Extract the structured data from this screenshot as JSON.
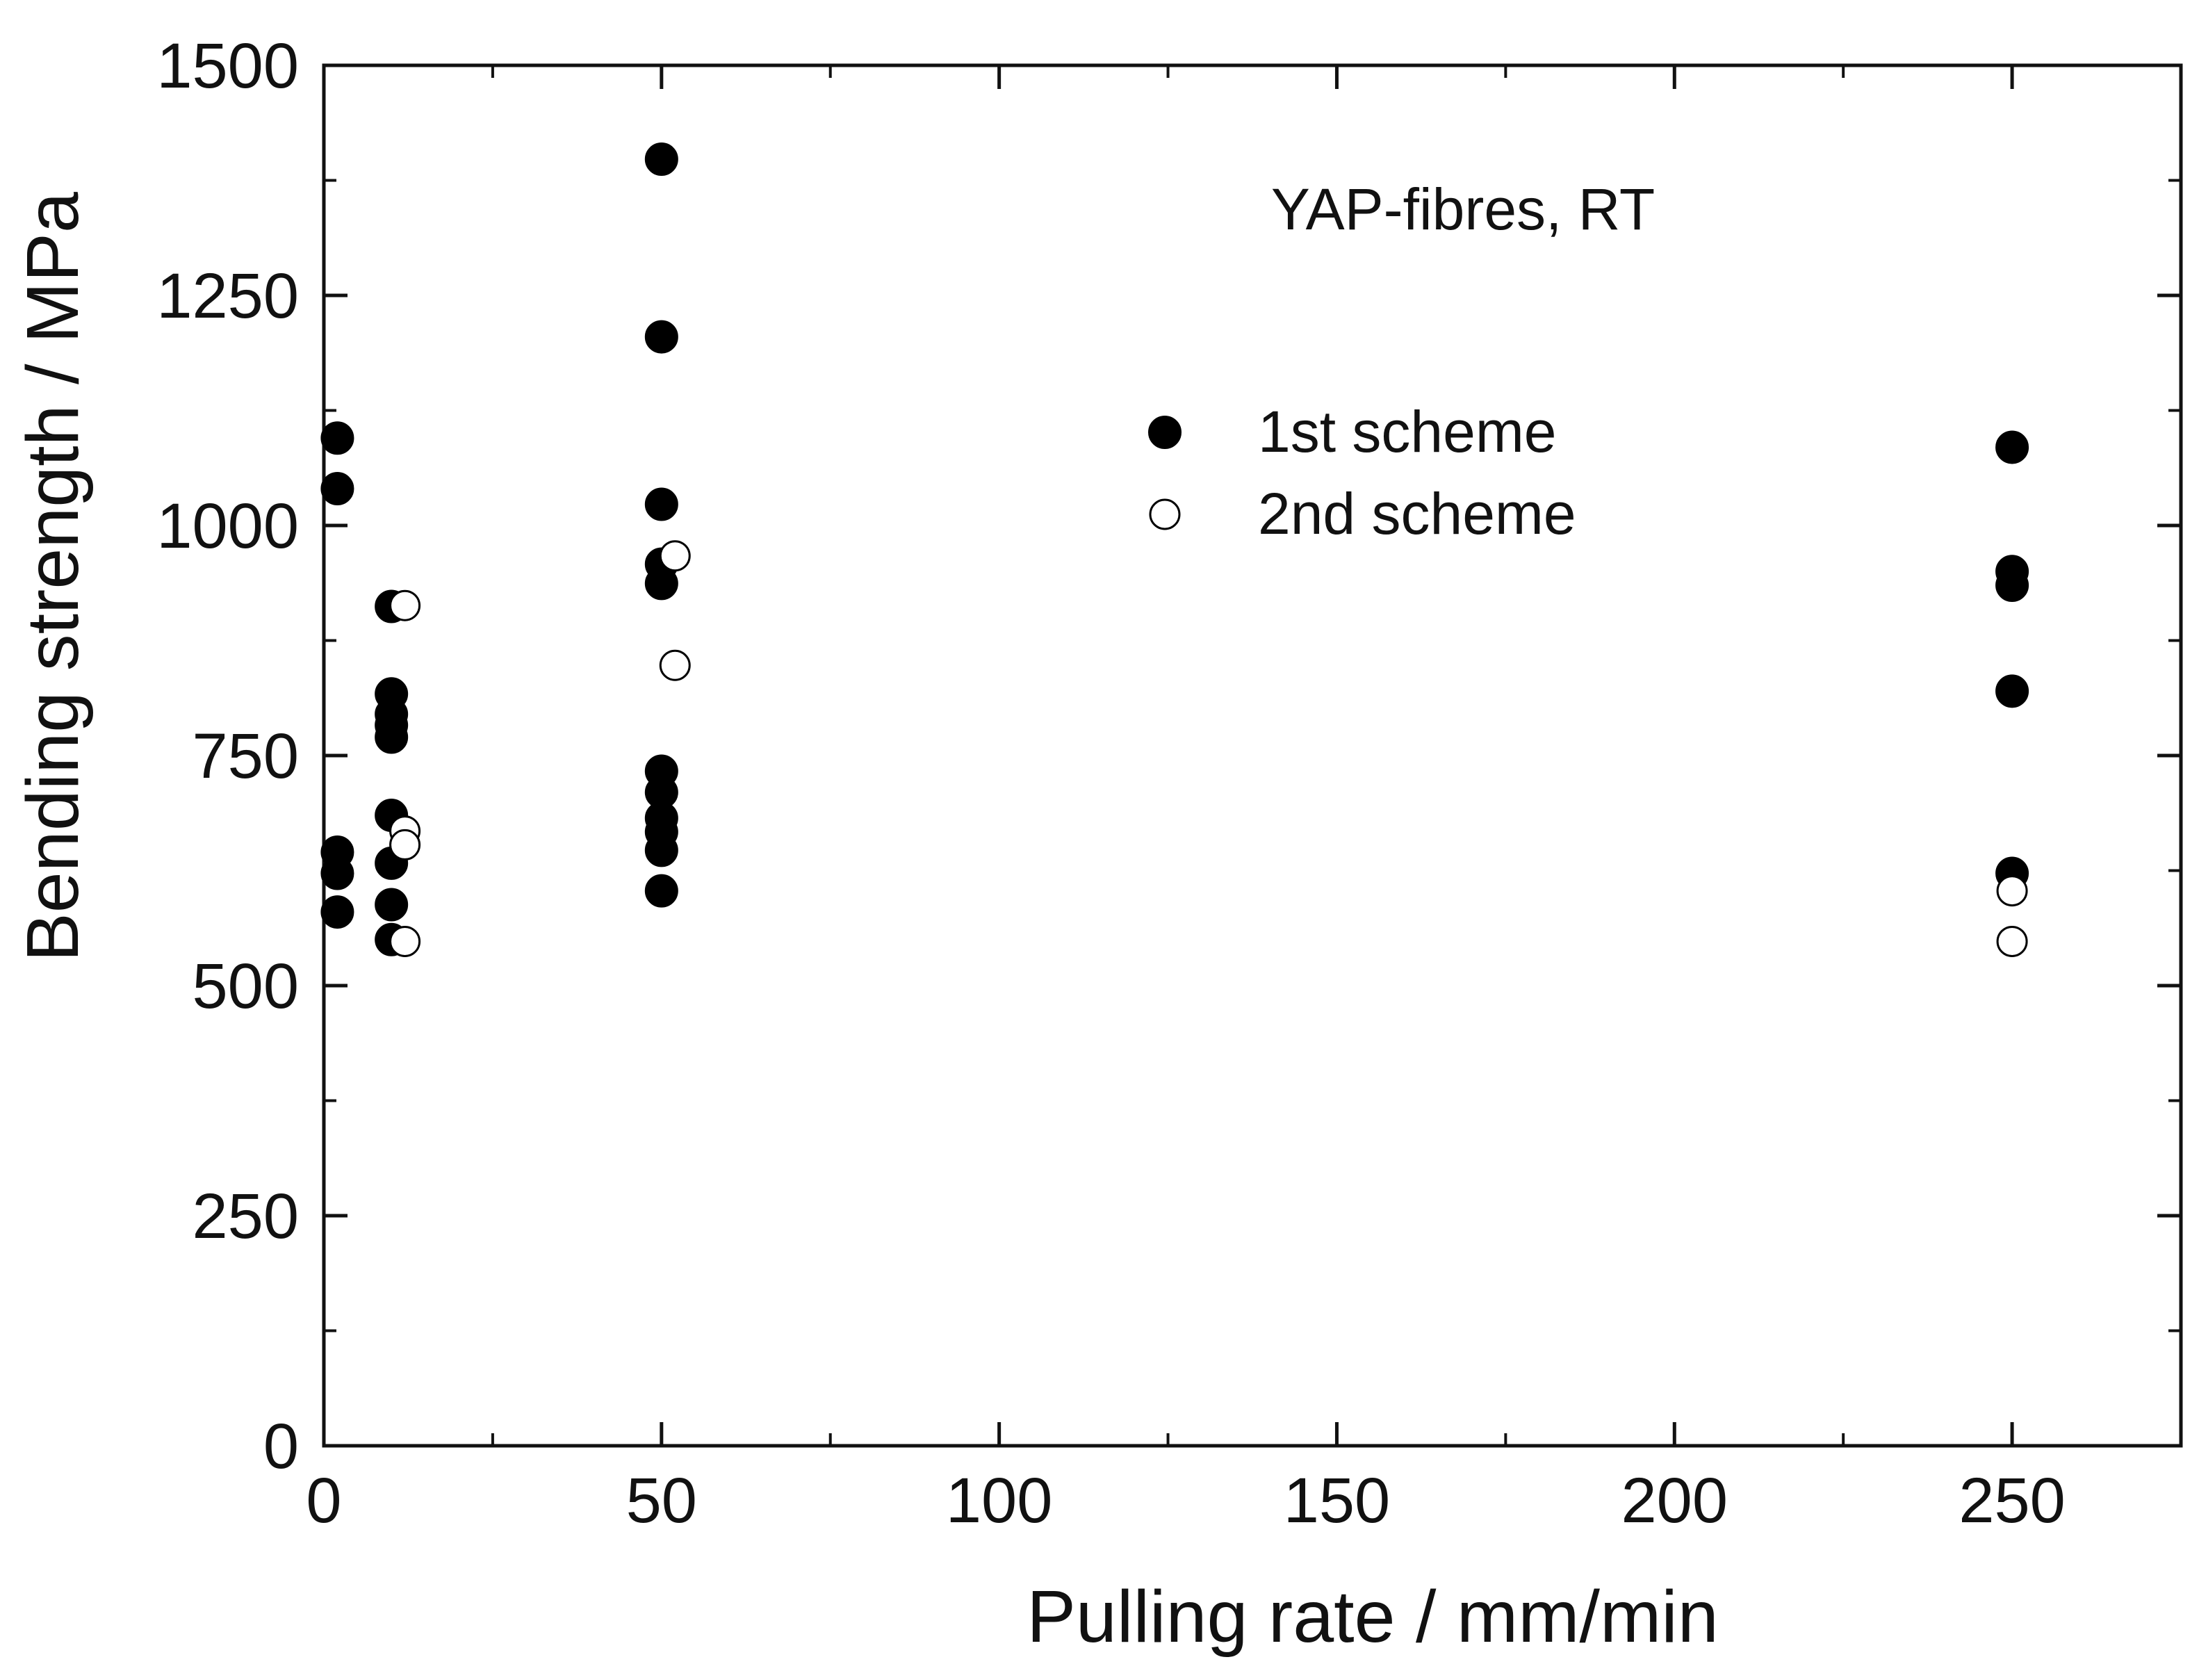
{
  "chart_data": {
    "type": "scatter",
    "title": "YAP-fibres, RT",
    "xlabel": "Pulling rate / mm/min",
    "ylabel": "Bending strength / MPa",
    "xlim": [
      0,
      275
    ],
    "ylim": [
      0,
      1500
    ],
    "xticks": [
      0,
      50,
      100,
      150,
      200,
      250
    ],
    "xticks_minor": [
      25,
      75,
      125,
      175,
      225
    ],
    "yticks": [
      0,
      250,
      500,
      750,
      1000,
      1250,
      1500
    ],
    "yticks_minor": [
      125,
      375,
      625,
      875,
      1125,
      1375
    ],
    "xtick_labels": [
      "0",
      "50",
      "100",
      "150",
      "200",
      "250"
    ],
    "ytick_labels": [
      "0",
      "250",
      "500",
      "750",
      "1000",
      "1250",
      "1500"
    ],
    "grid": false,
    "legend_position": "top-center",
    "series": [
      {
        "name": "1st scheme",
        "marker": "filled-circle",
        "color": "#000000",
        "x": [
          2,
          2,
          2,
          2,
          2,
          10,
          10,
          10,
          10,
          10,
          10,
          10,
          10,
          10,
          50,
          50,
          50,
          50,
          50,
          50,
          50,
          50,
          50,
          50,
          50,
          250,
          250,
          250,
          250,
          250
        ],
        "y": [
          1095,
          1040,
          645,
          622,
          580,
          912,
          817,
          795,
          770,
          685,
          633,
          588,
          550,
          783,
          1398,
          1205,
          1023,
          958,
          937,
          733,
          710,
          682,
          667,
          647,
          603,
          1085,
          950,
          935,
          820,
          622
        ]
      },
      {
        "name": "2nd scheme",
        "marker": "open-circle",
        "color": "#000000",
        "x": [
          12,
          12,
          12,
          12,
          52,
          52,
          250,
          250
        ],
        "y": [
          913,
          668,
          653,
          548,
          967,
          848,
          603,
          548
        ]
      }
    ]
  }
}
